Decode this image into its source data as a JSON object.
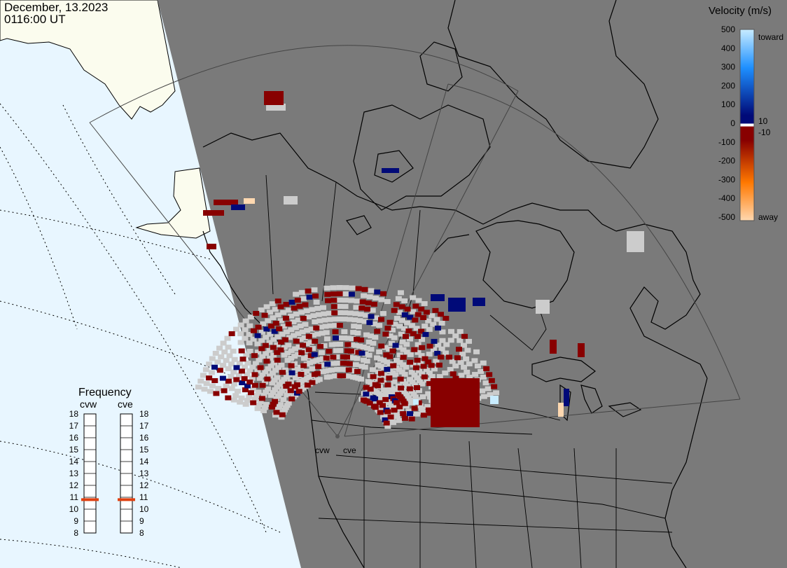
{
  "header": {
    "date": "December, 13.2023",
    "time": "0116:00 UT"
  },
  "map": {
    "ocean_color": "#e8f6ff",
    "land_color": "#fbfcee",
    "night_color": "#7a7a7a",
    "coastline_color": "#000000",
    "radars": [
      {
        "code": "cvw"
      },
      {
        "code": "cve"
      }
    ]
  },
  "velocity_scale": {
    "title": "Velocity (m/s)",
    "ticks": [
      "500",
      "400",
      "300",
      "200",
      "100",
      "0",
      "-100",
      "-200",
      "-300",
      "-400",
      "-500"
    ],
    "label_toward": "toward",
    "label_away": "away",
    "label_pos_threshold": "10",
    "label_neg_threshold": "-10",
    "colors": {
      "toward_fast": "#c8ecff",
      "toward_mid": "#1e90ff",
      "toward_slow": "#000a78",
      "zero": "#ffffff",
      "away_slow": "#880000",
      "away_mid": "#ff7800",
      "away_fast": "#ffd8b0",
      "ground_scatter": "#cccccc"
    }
  },
  "frequency": {
    "title": "Frequency",
    "radars": [
      {
        "code": "cvw",
        "frequency_mhz": 10.8
      },
      {
        "code": "cve",
        "frequency_mhz": 10.8
      }
    ],
    "ticks": [
      "18",
      "17",
      "16",
      "15",
      "14",
      "13",
      "12",
      "11",
      "10",
      "9",
      "8"
    ],
    "range_mhz": [
      8,
      18
    ],
    "marker_color": "#e04010"
  }
}
